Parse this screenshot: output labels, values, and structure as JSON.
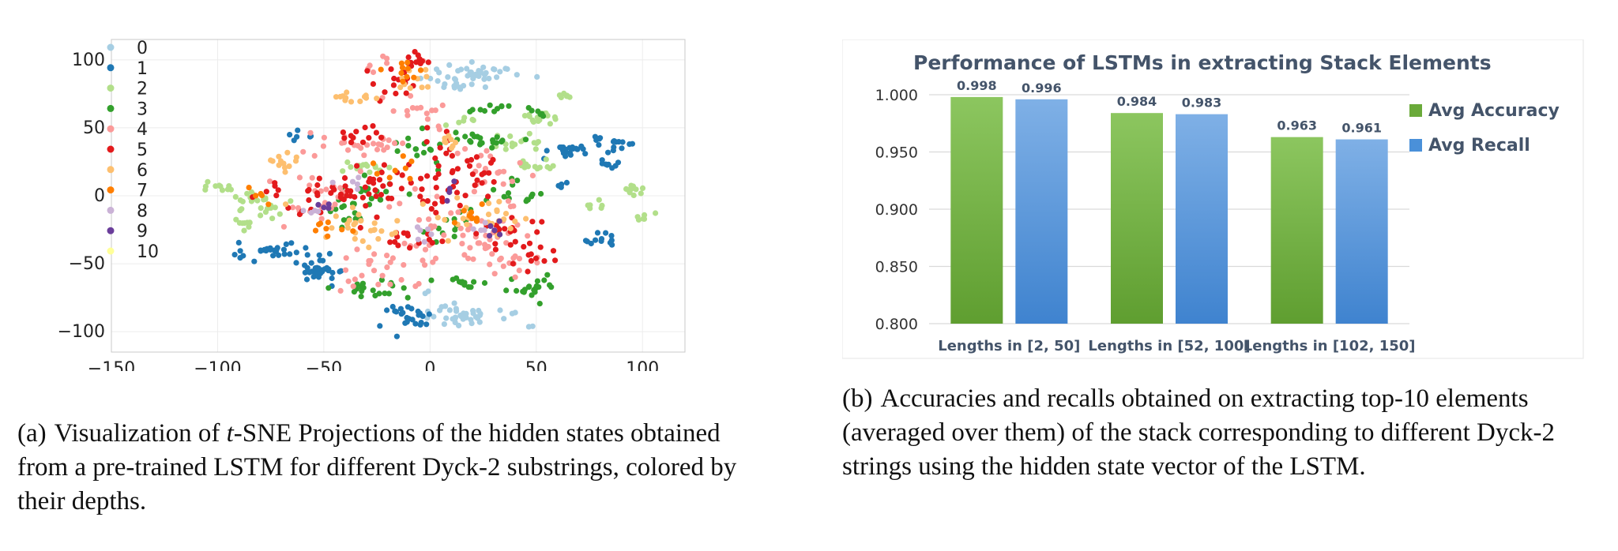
{
  "chart_data": [
    {
      "type": "scatter",
      "xlim": [
        -150,
        120
      ],
      "ylim": [
        -115,
        115
      ],
      "xticks": [
        "−150",
        "−100",
        "−50",
        "0",
        "50",
        "100"
      ],
      "xtick_values": [
        -150,
        -100,
        -50,
        0,
        50,
        100
      ],
      "yticks": [
        "100",
        "50",
        "0",
        "−50",
        "−100"
      ],
      "ytick_values": [
        100,
        50,
        0,
        -50,
        -100
      ],
      "grid": true,
      "legend_position": "top-left",
      "series": [
        {
          "name": "0",
          "color": "#a6cee3",
          "clusters": [
            [
              22,
              90,
              10,
              4,
              40
            ],
            [
              15,
              -88,
              10,
              4,
              40
            ],
            [
              10,
              82,
              5,
              2,
              10
            ],
            [
              -2,
              -70,
              1,
              1,
              2
            ],
            [
              48,
              -96,
              1,
              1,
              2
            ]
          ]
        },
        {
          "name": "1",
          "color": "#1f78b4",
          "clusters": [
            [
              -72,
              -40,
              9,
              3,
              30
            ],
            [
              -50,
              -56,
              6,
              5,
              30
            ],
            [
              -12,
              -88,
              6,
              5,
              25
            ],
            [
              65,
              33,
              6,
              2,
              20
            ],
            [
              88,
              38,
              5,
              2,
              12
            ],
            [
              86,
              23,
              3,
              2,
              8
            ],
            [
              80,
              -33,
              4,
              3,
              12
            ],
            [
              -59,
              44,
              3,
              2,
              6
            ],
            [
              62,
              8,
              2,
              1,
              5
            ],
            [
              79,
              42,
              2,
              2,
              4
            ]
          ]
        },
        {
          "name": "2",
          "color": "#b2df8a",
          "clusters": [
            [
              -82,
              -6,
              6,
              5,
              25
            ],
            [
              -90,
              -22,
              3,
              3,
              8
            ],
            [
              -100,
              6,
              4,
              2,
              10
            ],
            [
              50,
              58,
              6,
              3,
              15
            ],
            [
              -32,
              20,
              6,
              2,
              15
            ],
            [
              40,
              40,
              6,
              3,
              15
            ],
            [
              52,
              22,
              5,
              2,
              12
            ],
            [
              95,
              2,
              4,
              3,
              10
            ],
            [
              103,
              -16,
              3,
              3,
              6
            ],
            [
              63,
              74,
              2,
              2,
              6
            ],
            [
              78,
              -8,
              3,
              2,
              6
            ],
            [
              12,
              55,
              4,
              2,
              6
            ]
          ]
        },
        {
          "name": "3",
          "color": "#33a02c",
          "clusters": [
            [
              22,
              42,
              10,
              2,
              20
            ],
            [
              -30,
              -68,
              8,
              4,
              20
            ],
            [
              48,
              -67,
              8,
              4,
              20
            ],
            [
              18,
              -65,
              5,
              4,
              12
            ],
            [
              -5,
              38,
              6,
              6,
              15
            ],
            [
              -30,
              0,
              8,
              6,
              20
            ],
            [
              40,
              0,
              8,
              6,
              15
            ],
            [
              28,
              65,
              6,
              2,
              10
            ],
            [
              8,
              -23,
              6,
              5,
              12
            ],
            [
              -40,
              -15,
              5,
              5,
              10
            ],
            [
              50,
              62,
              3,
              2,
              6
            ]
          ]
        },
        {
          "name": "4",
          "color": "#fb9a99",
          "clusters": [
            [
              -35,
              40,
              10,
              5,
              25
            ],
            [
              10,
              -20,
              15,
              12,
              30
            ],
            [
              -20,
              -50,
              15,
              10,
              30
            ],
            [
              30,
              -35,
              10,
              8,
              20
            ],
            [
              -55,
              0,
              12,
              10,
              25
            ],
            [
              -5,
              60,
              10,
              8,
              15
            ],
            [
              25,
              15,
              10,
              10,
              20
            ],
            [
              40,
              -50,
              8,
              6,
              12
            ],
            [
              -18,
              95,
              5,
              5,
              8
            ]
          ]
        },
        {
          "name": "5",
          "color": "#e31a1c",
          "clusters": [
            [
              -20,
              85,
              6,
              8,
              15
            ],
            [
              -5,
              100,
              3,
              3,
              10
            ],
            [
              -20,
              10,
              10,
              10,
              25
            ],
            [
              15,
              20,
              12,
              12,
              30
            ],
            [
              -40,
              0,
              10,
              8,
              20
            ],
            [
              35,
              -25,
              8,
              8,
              18
            ],
            [
              50,
              -45,
              6,
              6,
              12
            ],
            [
              -65,
              0,
              8,
              8,
              15
            ],
            [
              -30,
              45,
              8,
              4,
              12
            ],
            [
              -10,
              -35,
              8,
              8,
              15
            ],
            [
              5,
              0,
              8,
              10,
              15
            ]
          ]
        },
        {
          "name": "6",
          "color": "#fdbf6f",
          "clusters": [
            [
              -35,
              72,
              8,
              2,
              12
            ],
            [
              -8,
              85,
              4,
              5,
              10
            ],
            [
              -70,
              25,
              4,
              4,
              12
            ],
            [
              -40,
              -20,
              10,
              6,
              15
            ],
            [
              15,
              -10,
              10,
              8,
              15
            ],
            [
              -25,
              -30,
              8,
              6,
              10
            ],
            [
              35,
              -15,
              6,
              6,
              10
            ],
            [
              10,
              40,
              5,
              3,
              8
            ]
          ]
        },
        {
          "name": "7",
          "color": "#ff7f00",
          "clusters": [
            [
              -10,
              92,
              6,
              3,
              10
            ],
            [
              -45,
              -25,
              5,
              4,
              8
            ],
            [
              -80,
              0,
              3,
              3,
              5
            ],
            [
              20,
              -15,
              5,
              5,
              8
            ],
            [
              -15,
              20,
              6,
              6,
              8
            ]
          ]
        },
        {
          "name": "8",
          "color": "#cab2d6",
          "clusters": [
            [
              0,
              -30,
              4,
              4,
              6
            ],
            [
              -35,
              10,
              4,
              4,
              5
            ],
            [
              25,
              -25,
              4,
              3,
              5
            ],
            [
              -55,
              -15,
              3,
              3,
              4
            ]
          ]
        },
        {
          "name": "9",
          "color": "#6a3d9a",
          "clusters": [
            [
              28,
              -28,
              5,
              3,
              5
            ],
            [
              -50,
              -10,
              4,
              3,
              4
            ],
            [
              10,
              5,
              4,
              4,
              4
            ]
          ]
        },
        {
          "name": "10",
          "color": "#ffff99",
          "clusters": []
        }
      ]
    },
    {
      "type": "bar",
      "title": "Performance of LSTMs in extracting Stack Elements",
      "categories": [
        "Lengths in [2, 50]",
        "Lengths in [52, 100]",
        "Lengths in [102, 150]"
      ],
      "ylim": [
        0.8,
        1.0
      ],
      "yticks": [
        "1.000",
        "0.950",
        "0.900",
        "0.850",
        "0.800"
      ],
      "ytick_values": [
        1.0,
        0.95,
        0.9,
        0.85,
        0.8
      ],
      "grid": true,
      "legend_position": "right",
      "series": [
        {
          "name": "Avg Accuracy",
          "color": "#6aaa3a",
          "values": [
            0.998,
            0.984,
            0.963
          ],
          "labels": [
            "0.998",
            "0.984",
            "0.963"
          ]
        },
        {
          "name": "Avg Recall",
          "color": "#4a90d9",
          "values": [
            0.996,
            0.983,
            0.961
          ],
          "labels": [
            "0.996",
            "0.983",
            "0.961"
          ]
        }
      ]
    }
  ],
  "captions": {
    "a": {
      "tag": "(a)",
      "pre": "Visualization of ",
      "italic": "t",
      "post": "-SNE Projections of the hidden states obtained from a pre-trained LSTM for different Dyck-2 substrings, colored by their depths."
    },
    "b": {
      "tag": "(b)",
      "text": "Accuracies and recalls obtained on extracting top-10 elements (averaged over them) of the stack corresponding to different Dyck-2 strings using the hidden state vector of the LSTM."
    }
  }
}
